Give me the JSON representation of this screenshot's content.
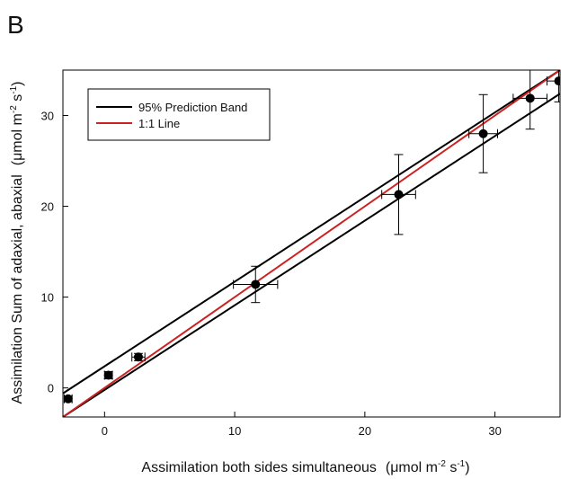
{
  "panel_label": "B",
  "chart_data": {
    "type": "scatter",
    "xlabel": "Assimilation both sides simultaneous",
    "xunit_prefix": "(μmol m",
    "xunit_exp1": "-2",
    "xunit_mid": " s",
    "xunit_exp2": "-1",
    "xunit_suffix": ")",
    "ylabel": "Assimilation Sum of adaxial, abaxial",
    "yunit_prefix": "(μmol m",
    "yunit_exp1": "-2",
    "yunit_mid": " s",
    "yunit_exp2": "-1",
    "yunit_suffix": ")",
    "xlim": [
      -3.2,
      35
    ],
    "ylim": [
      -3.2,
      35
    ],
    "xticks": [
      0,
      10,
      20,
      30
    ],
    "yticks": [
      0,
      10,
      20,
      30
    ],
    "xtick_labels": [
      "0",
      "10",
      "20",
      "30"
    ],
    "ytick_labels": [
      "0",
      "10",
      "20",
      "30"
    ],
    "grid": false,
    "legend_position": "top-left",
    "points": [
      {
        "x": -2.8,
        "y": -1.2,
        "xerr": 0.3,
        "yerr": 0.3
      },
      {
        "x": 0.3,
        "y": 1.4,
        "xerr": 0.3,
        "yerr": 0.4
      },
      {
        "x": 2.6,
        "y": 3.4,
        "xerr": 0.5,
        "yerr": 0.4
      },
      {
        "x": 11.6,
        "y": 11.4,
        "xerr": 1.7,
        "yerr": 2.0
      },
      {
        "x": 22.6,
        "y": 21.3,
        "xerr": 1.3,
        "yerr": 4.4
      },
      {
        "x": 29.1,
        "y": 28.0,
        "xerr": 1.1,
        "yerr": 4.3
      },
      {
        "x": 32.7,
        "y": 31.9,
        "xerr": 1.3,
        "yerr": 3.4
      },
      {
        "x": 34.9,
        "y": 33.8,
        "xerr": 0.9,
        "yerr": 2.3
      }
    ],
    "series": [
      {
        "name": "95% Prediction Band",
        "color": "#000000",
        "lines": [
          {
            "x1": -3.2,
            "y1": -0.6,
            "x2": 35,
            "y2": 35
          },
          {
            "x1": -3.2,
            "y1": -3.2,
            "x2": 35,
            "y2": 32.4
          }
        ]
      },
      {
        "name": "1:1 Line",
        "color": "#cc2222",
        "lines": [
          {
            "x1": -3.2,
            "y1": -3.2,
            "x2": 35,
            "y2": 35
          }
        ]
      }
    ]
  }
}
